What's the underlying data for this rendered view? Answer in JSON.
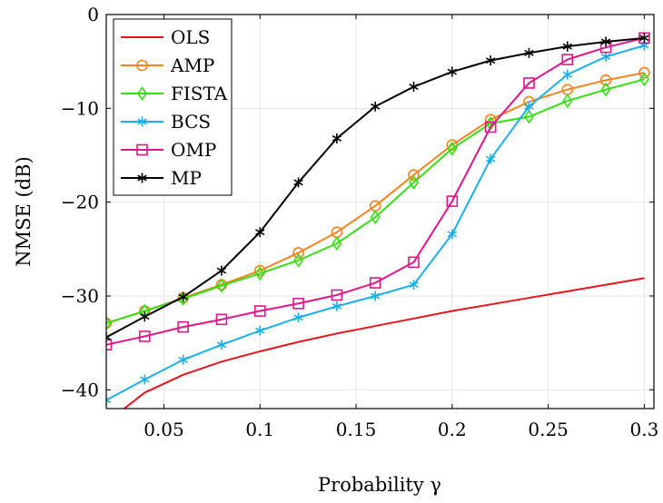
{
  "chart_data": {
    "type": "line",
    "title": "",
    "xlabel": "Probability γ",
    "ylabel": "NMSE (dB)",
    "xlim": [
      0.02,
      0.305
    ],
    "ylim": [
      -42,
      0
    ],
    "xticks": [
      0.05,
      0.1,
      0.15,
      0.2,
      0.25,
      0.3
    ],
    "xtick_labels": [
      "0.05",
      "0.1",
      "0.15",
      "0.2",
      "0.25",
      "0.3"
    ],
    "yticks": [
      -40,
      -30,
      -20,
      -10,
      0
    ],
    "ytick_labels": [
      "−40",
      "−30",
      "−20",
      "−10",
      "0"
    ],
    "grid": true,
    "legend_position": "top-left",
    "x": [
      0.02,
      0.04,
      0.06,
      0.08,
      0.1,
      0.12,
      0.14,
      0.16,
      0.18,
      0.2,
      0.22,
      0.24,
      0.26,
      0.28,
      0.3
    ],
    "series": [
      {
        "name": "OLS",
        "color": "#e8141c",
        "marker": "none",
        "values": [
          -43.5,
          -40.3,
          -38.4,
          -37.0,
          -35.9,
          -34.9,
          -34.0,
          -33.2,
          -32.4,
          -31.6,
          -30.9,
          -30.2,
          -29.5,
          -28.8,
          -28.1
        ]
      },
      {
        "name": "AMP",
        "color": "#f5841f",
        "marker": "circle",
        "values": [
          -32.9,
          -31.6,
          -30.2,
          -28.8,
          -27.3,
          -25.4,
          -23.2,
          -20.4,
          -17.1,
          -13.9,
          -11.2,
          -9.3,
          -8.0,
          -7.0,
          -6.2
        ]
      },
      {
        "name": "FISTA",
        "color": "#33e010",
        "marker": "diamond",
        "values": [
          -32.9,
          -31.6,
          -30.3,
          -28.9,
          -27.6,
          -26.2,
          -24.4,
          -21.6,
          -17.9,
          -14.3,
          -11.6,
          -10.9,
          -9.2,
          -8.0,
          -6.9
        ]
      },
      {
        "name": "BCS",
        "color": "#19b0e8",
        "marker": "asterisk",
        "values": [
          -41.1,
          -38.9,
          -36.8,
          -35.2,
          -33.7,
          -32.3,
          -31.1,
          -30.0,
          -28.8,
          -23.4,
          -15.4,
          -9.8,
          -6.4,
          -4.5,
          -3.3
        ]
      },
      {
        "name": "OMP",
        "color": "#e0148c",
        "marker": "square",
        "values": [
          -35.2,
          -34.3,
          -33.3,
          -32.5,
          -31.6,
          -30.8,
          -29.9,
          -28.6,
          -26.4,
          -19.9,
          -12.0,
          -7.3,
          -4.8,
          -3.5,
          -2.5
        ]
      },
      {
        "name": "MP",
        "color": "#000000",
        "marker": "asterisk",
        "values": [
          -34.4,
          -32.2,
          -30.1,
          -27.3,
          -23.2,
          -17.9,
          -13.2,
          -9.8,
          -7.7,
          -6.1,
          -4.9,
          -4.1,
          -3.4,
          -2.9,
          -2.5
        ]
      }
    ]
  }
}
